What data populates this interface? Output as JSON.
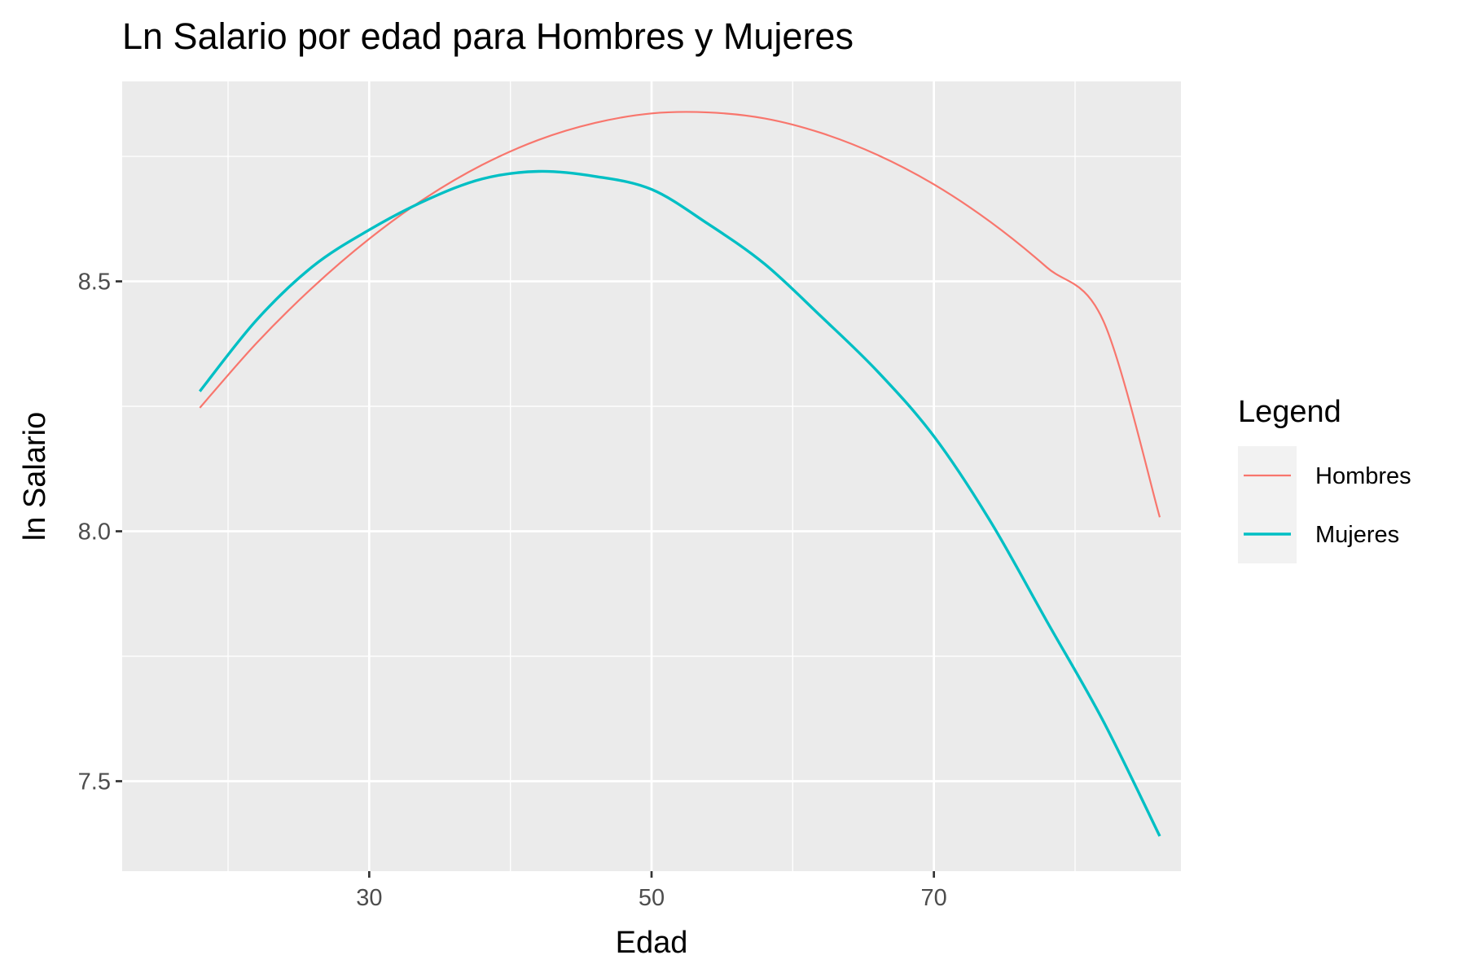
{
  "chart_data": {
    "type": "line",
    "title": "Ln Salario por edad para Hombres y Mujeres",
    "xlabel": "Edad",
    "ylabel": "ln Salario",
    "xlim": [
      12.5,
      87.5
    ],
    "ylim": [
      7.32,
      8.9
    ],
    "x_ticks": [
      30,
      50,
      70
    ],
    "y_ticks": [
      7.5,
      8.0,
      8.5
    ],
    "x_tick_labels": [
      "30",
      "50",
      "70"
    ],
    "y_tick_labels": [
      "7.5",
      "8.0",
      "8.5"
    ],
    "grid": true,
    "legend": {
      "title": "Legend",
      "position": "right"
    },
    "series": [
      {
        "name": "Hombres",
        "color": "#F8766D",
        "x": [
          18,
          22,
          26,
          30,
          34,
          38,
          42,
          46,
          50,
          54,
          58,
          62,
          66,
          70,
          74,
          78,
          82,
          86
        ],
        "y": [
          8.247,
          8.376,
          8.488,
          8.585,
          8.667,
          8.733,
          8.783,
          8.817,
          8.836,
          8.838,
          8.826,
          8.797,
          8.753,
          8.694,
          8.619,
          8.528,
          8.421,
          8.028
        ]
      },
      {
        "name": "Mujeres",
        "color": "#00BFC4",
        "x": [
          18,
          22,
          26,
          30,
          34,
          38,
          42,
          46,
          50,
          54,
          58,
          62,
          66,
          70,
          74,
          78,
          82,
          86
        ],
        "y": [
          8.28,
          8.422,
          8.53,
          8.603,
          8.662,
          8.705,
          8.72,
          8.71,
          8.684,
          8.615,
          8.535,
          8.43,
          8.32,
          8.19,
          8.02,
          7.82,
          7.62,
          7.39
        ]
      }
    ]
  }
}
